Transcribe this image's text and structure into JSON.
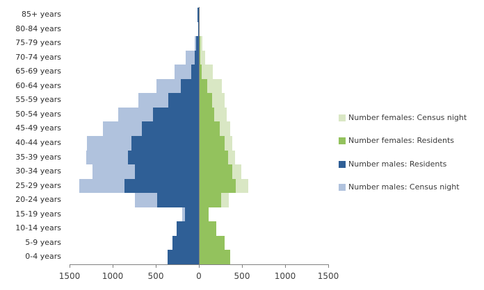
{
  "chart_data": {
    "type": "bar",
    "subtype": "population-pyramid",
    "title": "",
    "categories": [
      "85+ years",
      "80-84 years",
      "75-79 years",
      "70-74 years",
      "65-69 years",
      "60-64 years",
      "55-59 years",
      "50-54 years",
      "45-49 years",
      "40-44 years",
      "35-39 years",
      "30-34 years",
      "25-29 years",
      "20-24 years",
      "15-19 years",
      "10-14 years",
      "5-9 years",
      "0-4 years"
    ],
    "x_ticks": [
      "1500",
      "1000",
      "500",
      "0",
      "500",
      "1000",
      "1500"
    ],
    "x_max_each_side": 1500,
    "grid": false,
    "legend_position": "right",
    "axis_line_color": "#808080",
    "tick_label_color": "#3f3f3f",
    "category_label_color": "#2e2e2e",
    "series": [
      {
        "name": "Number females: Census night",
        "side": "right",
        "layer": 1,
        "color": "#d9e7c4",
        "values": [
          8,
          10,
          40,
          73,
          165,
          265,
          300,
          325,
          365,
          390,
          420,
          490,
          570,
          350,
          110,
          200,
          295,
          355
        ]
      },
      {
        "name": "Number females: Residents",
        "side": "right",
        "layer": 2,
        "color": "#93c25d",
        "values": [
          5,
          8,
          15,
          20,
          35,
          100,
          150,
          180,
          245,
          300,
          340,
          390,
          430,
          260,
          115,
          205,
          300,
          360
        ]
      },
      {
        "name": "Number males: Residents",
        "side": "left",
        "layer": 2,
        "color": "#2f5f96",
        "values": [
          20,
          10,
          30,
          45,
          90,
          210,
          355,
          535,
          660,
          780,
          820,
          740,
          860,
          480,
          160,
          260,
          310,
          365
        ]
      },
      {
        "name": "Number males: Census night",
        "side": "left",
        "layer": 1,
        "color": "#b0c2dd",
        "values": [
          15,
          12,
          50,
          150,
          285,
          490,
          700,
          935,
          1115,
          1295,
          1310,
          1230,
          1390,
          740,
          195,
          250,
          300,
          355
        ]
      }
    ]
  }
}
